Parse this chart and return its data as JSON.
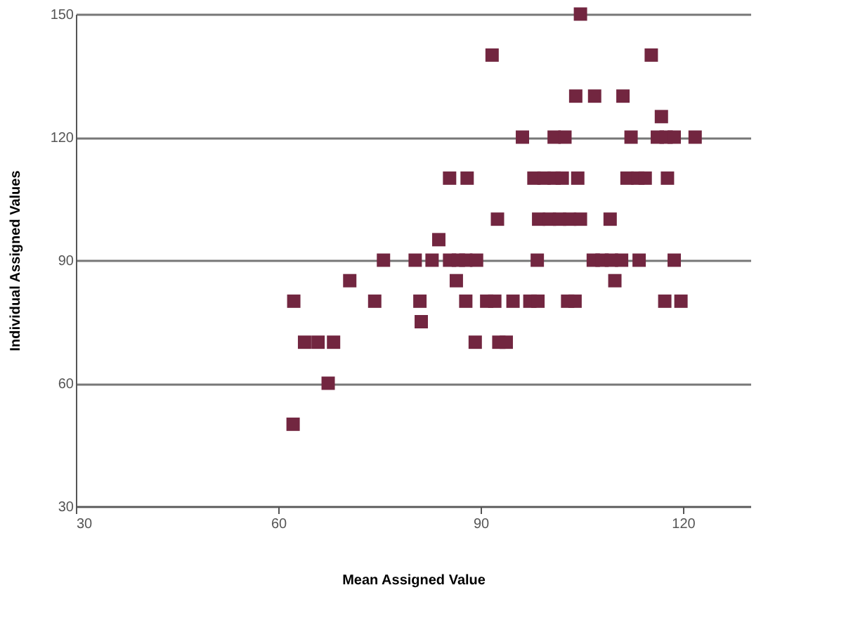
{
  "chart_data": {
    "type": "scatter",
    "xlabel": "Mean Assigned Value",
    "ylabel": "Individual Assigned Values",
    "xlim": [
      30,
      130
    ],
    "xticks": [
      30,
      60,
      90,
      120
    ],
    "ylim": [
      30,
      150
    ],
    "yticks": [
      30,
      60,
      90,
      120,
      150
    ],
    "grid": "y",
    "marker": "square",
    "series": [
      {
        "color": "#722640",
        "x": [
          104.8,
          91.7,
          115.3,
          104.1,
          106.9,
          111.1,
          116.8,
          96.2,
          100.9,
          102.5,
          112.3,
          116.2,
          117.5,
          118.7,
          121.8,
          85.4,
          88.0,
          97.9,
          99.4,
          100.9,
          102.1,
          104.4,
          111.7,
          113.3,
          114.4,
          117.7,
          92.5,
          98.6,
          100.2,
          101.7,
          103.2,
          104.8,
          109.2,
          83.8,
          75.6,
          80.3,
          82.8,
          85.4,
          86.7,
          87.8,
          89.4,
          98.4,
          106.7,
          108.0,
          109.4,
          110.9,
          113.5,
          118.7,
          70.6,
          86.4,
          109.9,
          62.3,
          74.3,
          81.0,
          87.8,
          90.9,
          92.1,
          94.8,
          97.3,
          98.5,
          102.9,
          104.0,
          117.3,
          119.7,
          81.2,
          63.9,
          65.9,
          68.2,
          89.2,
          92.7,
          93.8,
          67.4,
          62.2
        ],
        "values": [
          150,
          140,
          140,
          130,
          130,
          130,
          125,
          120,
          120,
          120,
          120,
          120,
          120,
          120,
          120,
          110,
          110,
          110,
          110,
          110,
          110,
          110,
          110,
          110,
          110,
          110,
          100,
          100,
          100,
          100,
          100,
          100,
          100,
          95,
          90,
          90,
          90,
          90,
          90,
          90,
          90,
          90,
          90,
          90,
          90,
          90,
          90,
          90,
          85,
          85,
          85,
          80,
          80,
          80,
          80,
          80,
          80,
          80,
          80,
          80,
          80,
          80,
          80,
          80,
          75,
          70,
          70,
          70,
          70,
          70,
          70,
          60,
          50
        ]
      }
    ]
  }
}
